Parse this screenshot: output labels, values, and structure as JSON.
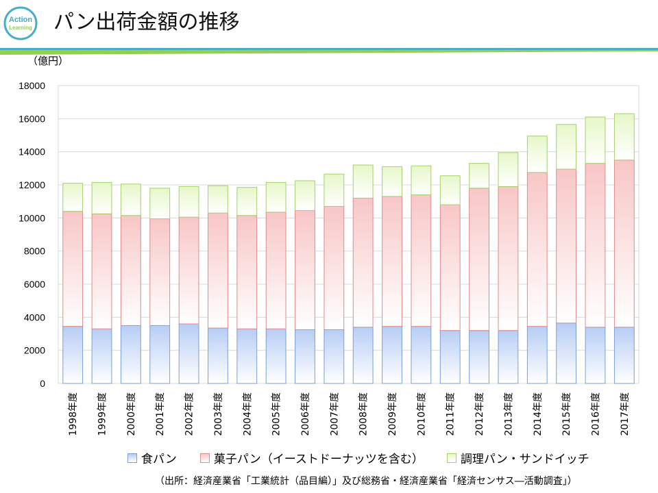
{
  "logo": {
    "line1": "Action",
    "line2": "Learning"
  },
  "title": "パン出荷金額の推移",
  "colors": {
    "brand_teal": "#4bacc6",
    "brand_green": "#92d050"
  },
  "chart_data": {
    "type": "bar",
    "stacked": true,
    "unit_label": "（億円）",
    "categories": [
      "1998年度",
      "1999年度",
      "2000年度",
      "2001年度",
      "2002年度",
      "2003年度",
      "2004年度",
      "2005年度",
      "2006年度",
      "2007年度",
      "2008年度",
      "2009年度",
      "2010年度",
      "2011年度",
      "2012年度",
      "2013年度",
      "2014年度",
      "2015年度",
      "2016年度",
      "2017年度"
    ],
    "series": [
      {
        "name": "食パン",
        "color_fill": "#b7cdf5",
        "color_edge": "#7a9ed8",
        "values": [
          3450,
          3300,
          3500,
          3500,
          3600,
          3350,
          3300,
          3300,
          3250,
          3250,
          3400,
          3450,
          3450,
          3200,
          3200,
          3200,
          3450,
          3650,
          3400,
          3400
        ]
      },
      {
        "name": "菓子パン（イーストドーナッツを含む）",
        "color_fill": "#f8c6c6",
        "color_edge": "#e08a8a",
        "values": [
          6950,
          6950,
          6650,
          6450,
          6450,
          6950,
          6850,
          7050,
          7200,
          7450,
          7800,
          7850,
          7950,
          7600,
          8600,
          8700,
          9300,
          9300,
          9900,
          10100
        ]
      },
      {
        "name": "調理パン・サンドイッチ",
        "color_fill": "#e6f7c8",
        "color_edge": "#a5cf6f",
        "values": [
          1700,
          1900,
          1900,
          1850,
          1850,
          1650,
          1700,
          1800,
          1800,
          1950,
          2000,
          1800,
          1750,
          1750,
          1500,
          2050,
          2200,
          2700,
          2800,
          2800
        ]
      }
    ],
    "ylim": [
      0,
      18000
    ],
    "yticks": [
      0,
      2000,
      4000,
      6000,
      8000,
      10000,
      12000,
      14000,
      16000,
      18000
    ],
    "grid": true,
    "legend_position": "bottom"
  },
  "source": "（出所：経済産業省「工業統計（品目編）」及び総務省・経済産業省「経済センサス―活動調査」）"
}
